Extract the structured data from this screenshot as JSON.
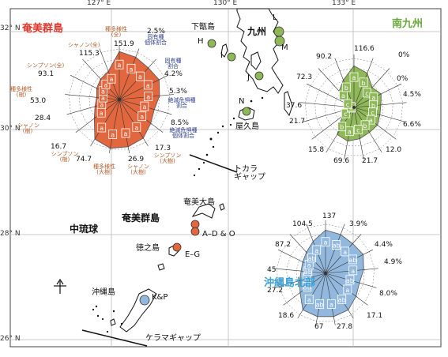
{
  "axes": {
    "lon_ticks": [
      "127° E",
      "130° E",
      "133° E"
    ],
    "lat_ticks": [
      "32° N",
      "30° N",
      "28° N",
      "26° N"
    ]
  },
  "places": {
    "kyushu": "九州",
    "shimokoshiki": "下甑島",
    "yakushima": "屋久島",
    "amami_oshima": "奄美大島",
    "amami_islands": "奄美群島",
    "tokunoshima": "徳之島",
    "okinawa": "沖縄島",
    "central_ryukyu": "中琉球",
    "tokara_gap": "トカラ\nギャップ",
    "kerama_gap": "ケラマギャップ"
  },
  "sites": {
    "H": "H",
    "I": "I",
    "J": "J",
    "L": "L",
    "M": "M",
    "N": "N",
    "amami": "A–D & O",
    "tokuno": "E–G",
    "okinawa": "K&P"
  },
  "colors": {
    "amami": "#e2673f",
    "minami_kyushu": "#8fb858",
    "okinawa_north": "#92b8de",
    "amami_label": "#e0352b",
    "kyushu_label": "#6aa83c",
    "okinawa_label": "#3b9fd4",
    "axis_label": "#b5602e",
    "metric_label": "#2e3f8f"
  },
  "labels": {
    "north_arrow": "↑"
  },
  "panels": [
    {
      "title": "奄美群島",
      "color_key": "amami",
      "values": {
        "syn_all": "151.9",
        "syn_all2": "115.3",
        "shin_all": "93.1",
        "syn_left": "53.0",
        "shin_left": "28.4",
        "tree_sl": "16.7",
        "tree_sl2": "74.7",
        "tree_bottom": "26.9",
        "tree_br": "17.3",
        "pct1": "2.5%",
        "pct2": "4.2%",
        "pct3": "5.3%",
        "pct4": "8.5%"
      },
      "labels": {
        "top": "種多様性\n(全)",
        "shinon_top": "シャノン(全)",
        "syn_top": "シンプソン(全)",
        "left": "種多様性\n(樹)",
        "shinon_left": "シャノン\n(樹)",
        "syn_bl": "シンプソン\n(樹)",
        "tree_b": "種多様性\n(大樹)",
        "shinon_b": "シャノン\n(大樹)",
        "syn_br": "シンプソン\n(大樹)",
        "m1": "固有種\n個体割合",
        "m2": "固有種\n割合",
        "m3": "絶滅危惧種\n割合",
        "m4": "絶滅危惧種\n個体割合"
      }
    },
    {
      "title": "南九州",
      "color_key": "minami_kyushu",
      "values": {
        "syn_all": "116.6",
        "syn_all2": "90.2",
        "shin_all": "72.3",
        "syn_left": "37.6",
        "shin_left": "21.7",
        "tree_sl": "15.8",
        "tree_sl2": "69.6",
        "tree_bottom": "21.7",
        "tree_br": "12.0",
        "pct1": "0%",
        "pct2": "0%",
        "pct3": "4.5%",
        "pct4": "6.6%"
      }
    },
    {
      "title": "沖縄島北部",
      "color_key": "okinawa_north",
      "values": {
        "syn_all": "137",
        "syn_all2": "104.5",
        "shin_all": "87.2",
        "syn_left": "45",
        "shin_left": "27.2",
        "tree_sl": "18.6",
        "tree_sl2": "67",
        "tree_bottom": "27.8",
        "tree_br": "17.1",
        "pct1": "3.9%",
        "pct2": "4.4%",
        "pct3": "4.9%",
        "pct4": "8.0%"
      }
    }
  ],
  "cell_letters": {
    "a": "a",
    "b": "b",
    "c": "c",
    "ab": "ab"
  }
}
